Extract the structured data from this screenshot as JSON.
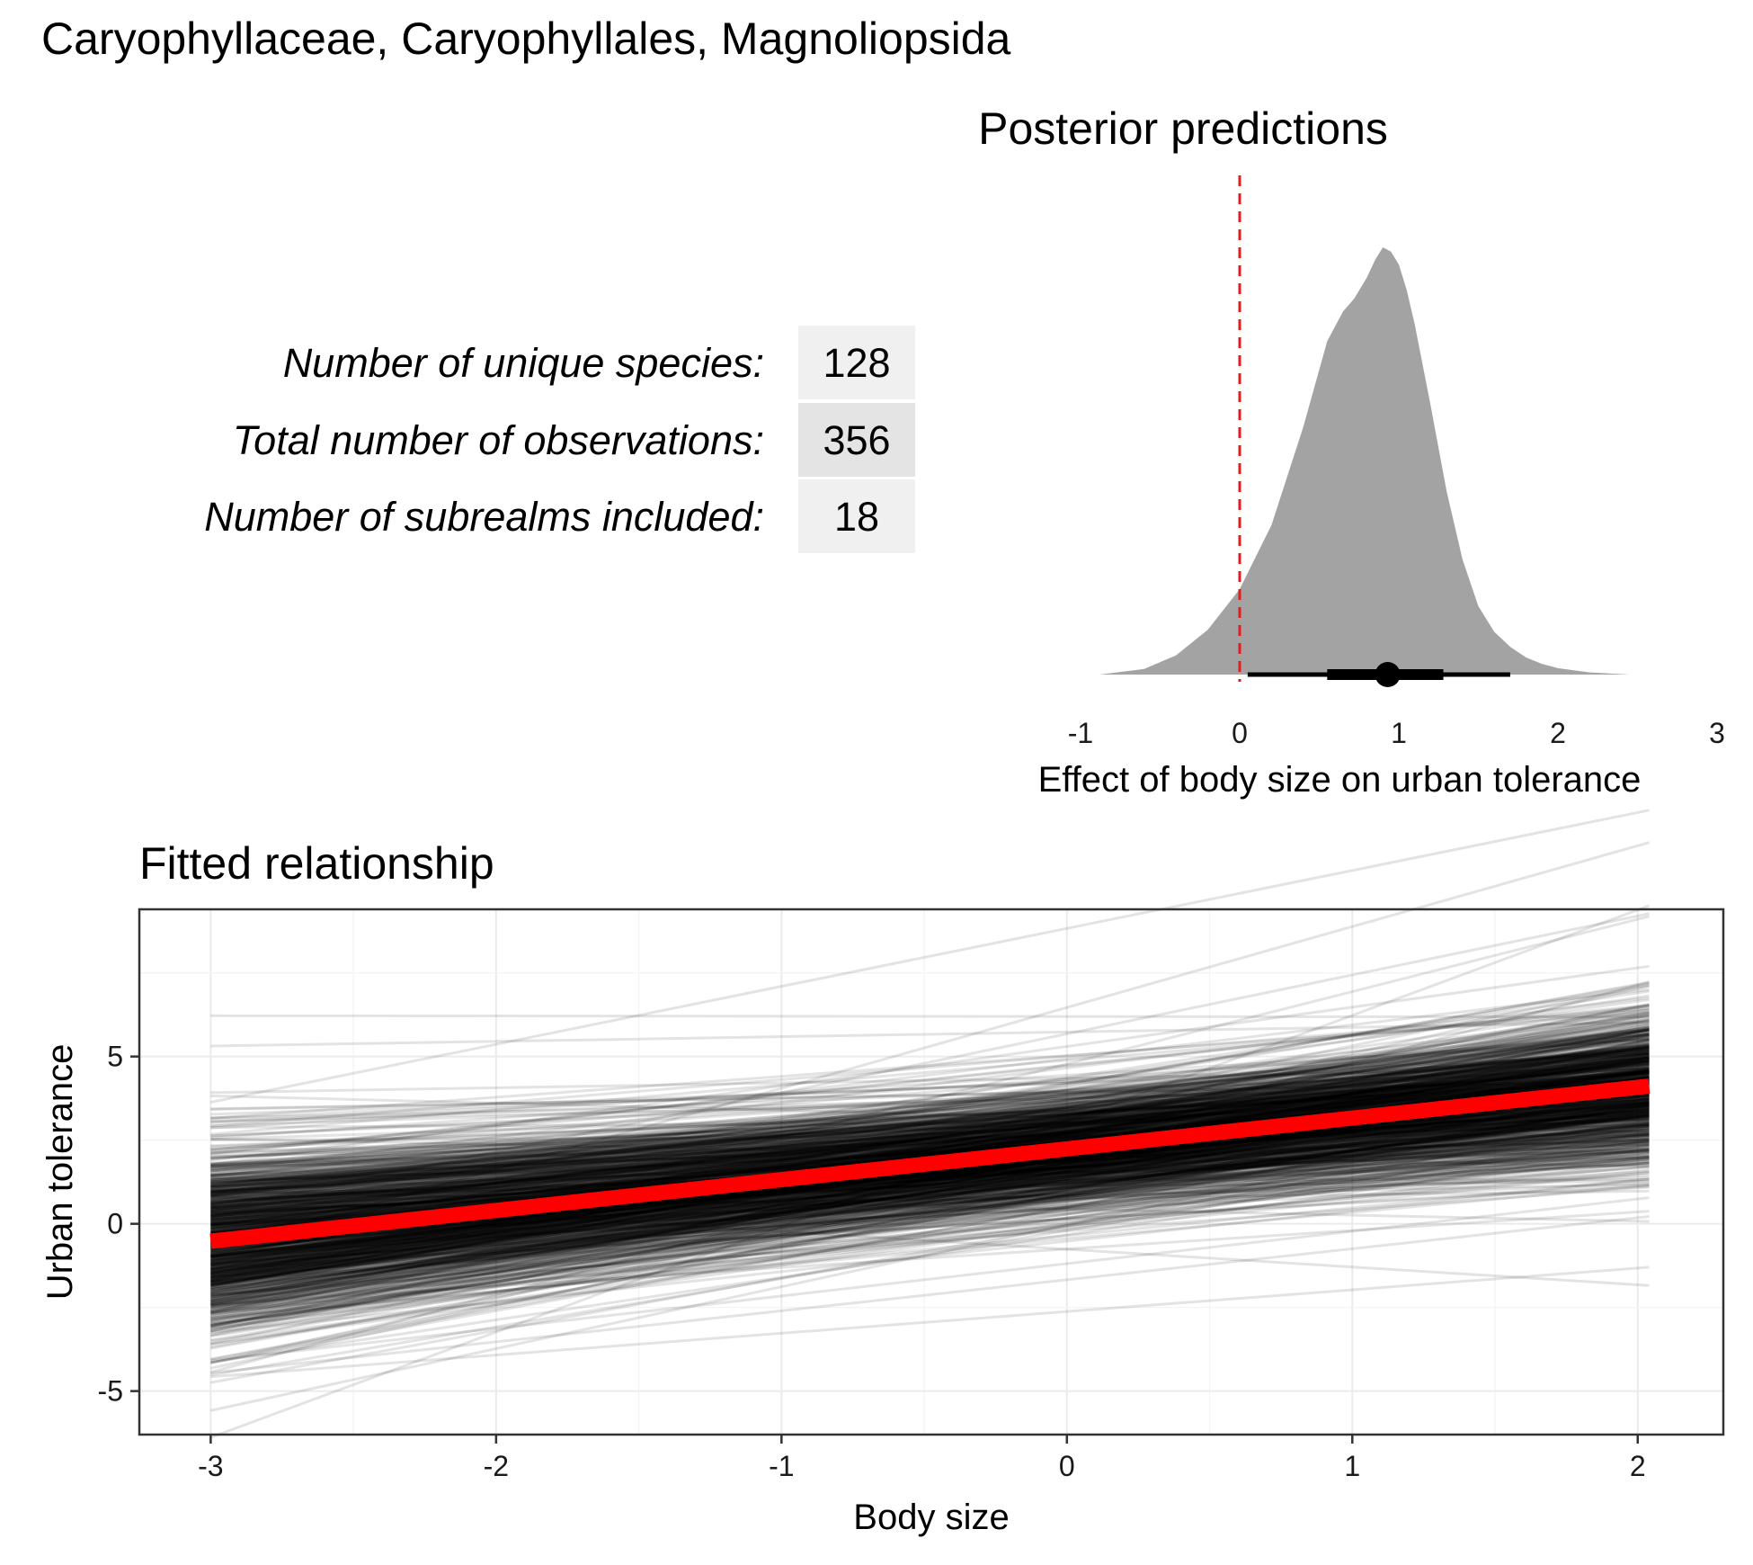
{
  "figure_title": "Caryophyllaceae, Caryophyllales, Magnoliopsida",
  "stats_table": {
    "rows": [
      {
        "label": "Number of unique species:",
        "value": "128"
      },
      {
        "label": "Total number of observations:",
        "value": "356"
      },
      {
        "label": "Number of subrealms included:",
        "value": "18"
      }
    ]
  },
  "colors": {
    "density_fill": "#a3a3a3",
    "reference_line": "#e41a1c",
    "fit_line": "#ff0000",
    "draw_line": "#000000",
    "panel_border": "#333333",
    "grid_major": "#ebebeb",
    "grid_minor": "#f4f4f4",
    "table_cell_light": "#f0f0f0",
    "table_cell_dark": "#e4e4e4"
  },
  "chart_data": [
    {
      "type": "area",
      "id": "posterior",
      "title": "Posterior predictions",
      "xlabel": "Effect of body size on urban tolerance",
      "ylabel": "",
      "xlim": [
        -1,
        3
      ],
      "xticks": [
        -1,
        0,
        1,
        2,
        3
      ],
      "xtick_labels": [
        "-1",
        "0",
        "1",
        "2",
        "3"
      ],
      "reference_x": 0,
      "density": {
        "x": [
          -0.88,
          -0.6,
          -0.4,
          -0.2,
          0.0,
          0.2,
          0.4,
          0.55,
          0.65,
          0.72,
          0.8,
          0.85,
          0.9,
          0.95,
          1.0,
          1.05,
          1.1,
          1.2,
          1.3,
          1.4,
          1.5,
          1.6,
          1.7,
          1.8,
          1.9,
          2.0,
          2.2,
          2.45
        ],
        "y": [
          0.0,
          0.013,
          0.045,
          0.105,
          0.2,
          0.35,
          0.58,
          0.78,
          0.85,
          0.88,
          0.93,
          0.97,
          1.0,
          0.99,
          0.96,
          0.9,
          0.82,
          0.63,
          0.43,
          0.27,
          0.16,
          0.1,
          0.065,
          0.04,
          0.025,
          0.015,
          0.005,
          0.0
        ]
      },
      "point_interval": {
        "point": 0.93,
        "inner": [
          0.55,
          1.28
        ],
        "outer": [
          0.05,
          1.7
        ]
      }
    },
    {
      "type": "line",
      "id": "fitted",
      "title": "Fitted relationship",
      "xlabel": "Body size",
      "ylabel": "Urban tolerance",
      "xlim": [
        -3.25,
        2.3
      ],
      "ylim": [
        -6.3,
        9.4
      ],
      "xticks": [
        -3,
        -2,
        -1,
        0,
        1,
        2
      ],
      "xtick_labels": [
        "-3",
        "-2",
        "-1",
        "0",
        "1",
        "2"
      ],
      "yticks": [
        -5,
        0,
        5
      ],
      "ytick_labels": [
        "-5",
        "0",
        "5"
      ],
      "x_range": [
        -3,
        2.04
      ],
      "fit": {
        "intercept": 2.24,
        "slope": 0.92
      },
      "posterior_draws": {
        "count": 1000,
        "slope_mean": 0.92,
        "slope_sd": 0.33,
        "intercept_sd": 0.95
      }
    }
  ]
}
